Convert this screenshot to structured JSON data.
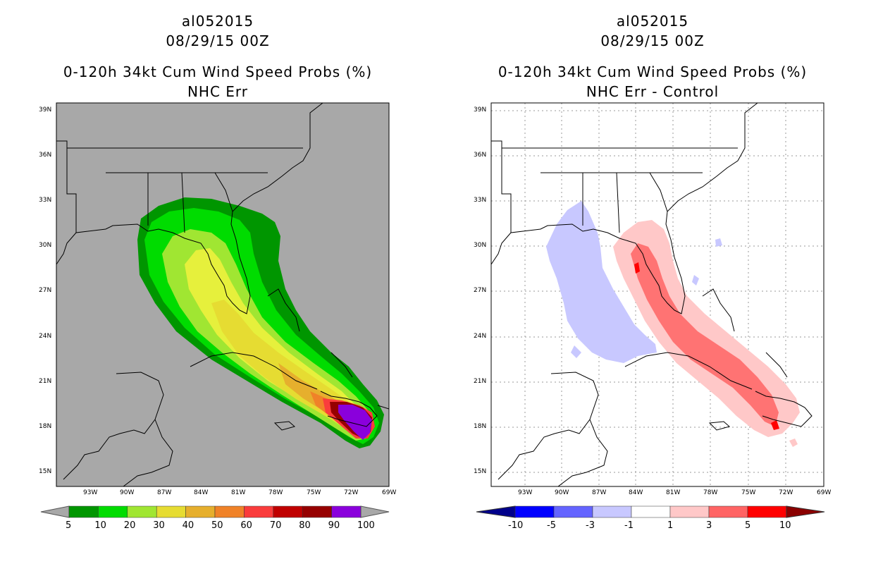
{
  "left": {
    "storm_id": "al052015",
    "datetime": "08/29/15 00Z",
    "title": "0-120h 34kt Cum Wind Speed Probs (%)",
    "subtitle": "NHC Err",
    "lat_ticks": [
      "39N",
      "36N",
      "33N",
      "30N",
      "27N",
      "24N",
      "21N",
      "18N",
      "15N"
    ],
    "lon_ticks": [
      "93W",
      "90W",
      "87W",
      "84W",
      "81W",
      "78W",
      "75W",
      "72W",
      "69W"
    ],
    "colorbar": {
      "labels": [
        "5",
        "10",
        "20",
        "30",
        "40",
        "50",
        "60",
        "70",
        "80",
        "90",
        "100"
      ],
      "colors": [
        "#009600",
        "#00dc00",
        "#a0e632",
        "#e6dc32",
        "#e6af2d",
        "#f08228",
        "#fa3c3c",
        "#c00000",
        "#960000",
        "#8a00dc"
      ]
    }
  },
  "right": {
    "storm_id": "al052015",
    "datetime": "08/29/15 00Z",
    "title": "0-120h 34kt Cum Wind Speed Probs (%)",
    "subtitle": "NHC Err - Control",
    "lat_ticks": [
      "39N",
      "36N",
      "33N",
      "30N",
      "27N",
      "24N",
      "21N",
      "18N",
      "15N"
    ],
    "lon_ticks": [
      "93W",
      "90W",
      "87W",
      "84W",
      "81W",
      "78W",
      "75W",
      "72W",
      "69W"
    ],
    "colorbar": {
      "labels": [
        "-10",
        "-5",
        "-3",
        "-1",
        "1",
        "3",
        "5",
        "10"
      ],
      "colors": [
        "#00008b",
        "#0000ff",
        "#6464ff",
        "#c8c8ff",
        "#ffffff",
        "#ffc8c8",
        "#ff6464",
        "#ff0000",
        "#8b0000"
      ]
    }
  }
}
